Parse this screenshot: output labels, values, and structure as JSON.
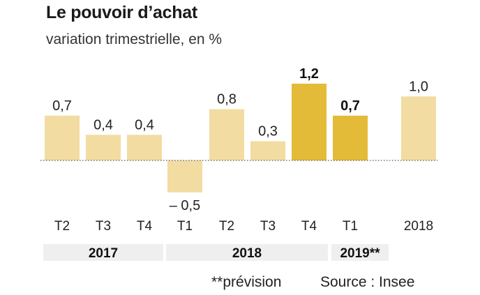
{
  "title": "Le pouvoir d’achat",
  "subtitle": "variation trimestrielle, en %",
  "footer": {
    "note": "**prévision",
    "source": "Source : Insee"
  },
  "colors": {
    "pale": "#f2dca2",
    "highlight": "#e4bb38",
    "baseline": "#555555",
    "group_bg": "#efefef"
  },
  "chart_data": {
    "type": "bar",
    "categories": [
      "T2",
      "T3",
      "T4",
      "T1",
      "T2",
      "T3",
      "T4",
      "T1",
      "2018"
    ],
    "values": [
      0.7,
      0.4,
      0.4,
      -0.5,
      0.8,
      0.3,
      1.2,
      0.7,
      1.0
    ],
    "value_labels": [
      "0,7",
      "0,4",
      "0,4",
      "– 0,5",
      "0,8",
      "0,3",
      "1,2",
      "0,7",
      "1,0"
    ],
    "highlighted": [
      false,
      false,
      false,
      false,
      false,
      false,
      true,
      true,
      false
    ],
    "groups": [
      {
        "label": "2017",
        "from": 0,
        "to": 2
      },
      {
        "label": "2018",
        "from": 3,
        "to": 6
      },
      {
        "label": "2019**",
        "from": 7,
        "to": 7
      }
    ],
    "ylim": [
      -0.5,
      1.2
    ],
    "baseline": "dotted",
    "grid": false
  }
}
